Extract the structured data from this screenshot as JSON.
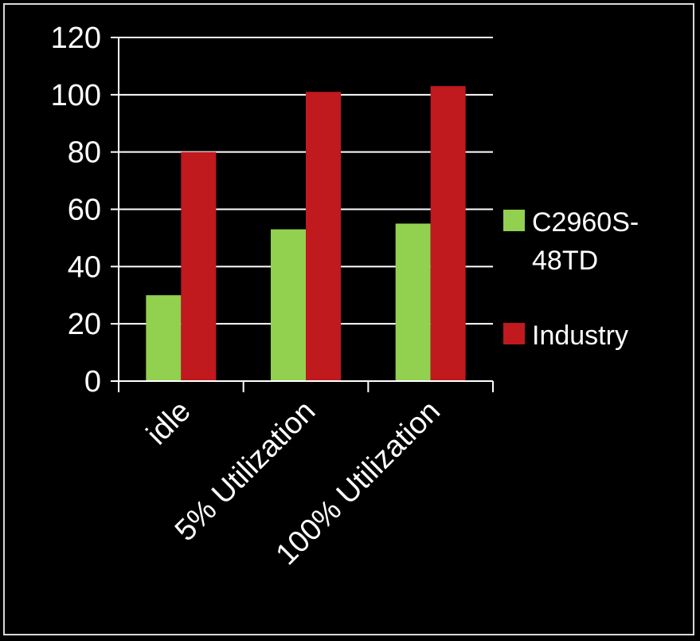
{
  "chart_data": {
    "type": "bar",
    "categories": [
      "idle",
      "5% Utilization",
      "100% Utilization"
    ],
    "series": [
      {
        "name": "C2960S-48TD",
        "values": [
          30,
          53,
          55
        ],
        "color": "#92d050"
      },
      {
        "name": "Industry",
        "values": [
          80,
          101,
          103
        ],
        "color": "#c0191e"
      }
    ],
    "title": "",
    "xlabel": "",
    "ylabel": "",
    "ylim": [
      0,
      120
    ],
    "yticks": [
      "0",
      "20",
      "40",
      "60",
      "80",
      "100",
      "120"
    ],
    "grid": true,
    "legend": "right",
    "colors": {
      "background": "#000000",
      "text": "#ffffff",
      "grid": "#ffffff",
      "frame": "#d9d9d9"
    }
  }
}
